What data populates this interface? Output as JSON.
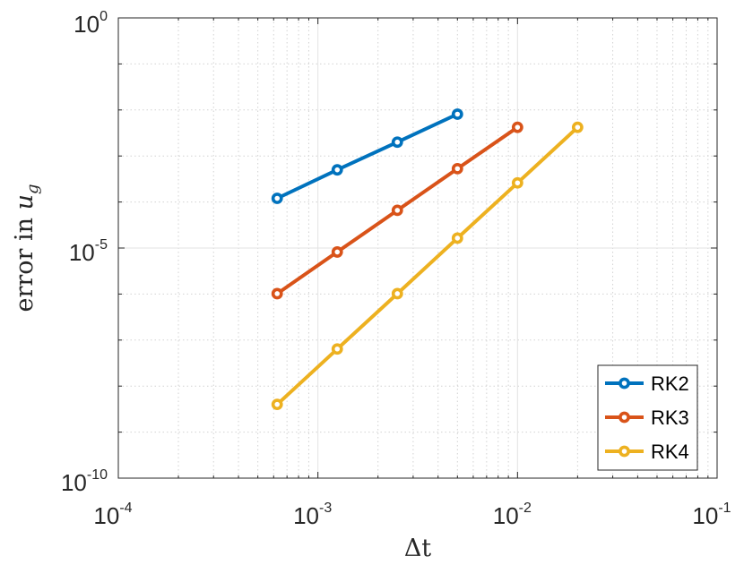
{
  "chart_data": {
    "type": "line",
    "xscale": "log",
    "yscale": "log",
    "xlim": [
      0.0001,
      0.1
    ],
    "ylim": [
      1e-10,
      1
    ],
    "grid": true,
    "minor_grid": true,
    "legend_position": "bottom-right",
    "xlabel": "Δt",
    "ylabel": {
      "prefix": "error in ",
      "var": "u",
      "sub": "g"
    },
    "x_ticks": [
      {
        "value": 0.0001,
        "base": "10",
        "exp": "-4"
      },
      {
        "value": 0.001,
        "base": "10",
        "exp": "-3"
      },
      {
        "value": 0.01,
        "base": "10",
        "exp": "-2"
      },
      {
        "value": 0.1,
        "base": "10",
        "exp": "-1"
      }
    ],
    "y_ticks": [
      {
        "value": 1e-10,
        "base": "10",
        "exp": "-10"
      },
      {
        "value": 1e-05,
        "base": "10",
        "exp": "-5"
      },
      {
        "value": 1,
        "base": "10",
        "exp": "0"
      }
    ],
    "series": [
      {
        "name": "RK2",
        "color": "#0072BD",
        "x": [
          0.000625,
          0.00125,
          0.0025,
          0.005
        ],
        "y": [
          0.00012,
          0.0005,
          0.002,
          0.0081
        ]
      },
      {
        "name": "RK3",
        "color": "#D95319",
        "x": [
          0.000625,
          0.00125,
          0.0025,
          0.005,
          0.01
        ],
        "y": [
          1.02e-06,
          8.2e-06,
          6.6e-05,
          0.00053,
          0.0042
        ]
      },
      {
        "name": "RK4",
        "color": "#EDB120",
        "x": [
          0.000625,
          0.00125,
          0.0025,
          0.005,
          0.01,
          0.02
        ],
        "y": [
          4e-09,
          6.4e-08,
          1.02e-06,
          1.64e-05,
          0.00026,
          0.0042
        ]
      }
    ]
  }
}
